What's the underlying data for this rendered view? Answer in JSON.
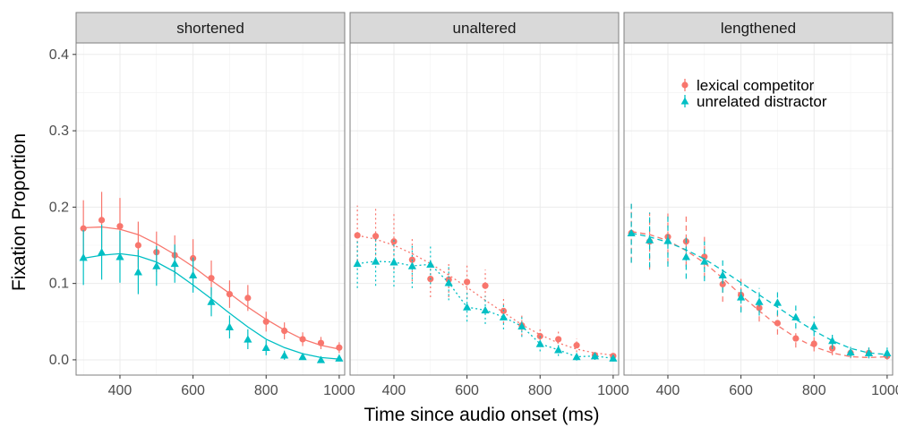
{
  "chart_data": {
    "type": "scatter",
    "xlabel": "Time since audio onset (ms)",
    "ylabel": "Fixation Proportion",
    "xlim": [
      280,
      1015
    ],
    "ylim": [
      -0.02,
      0.415
    ],
    "x_ticks": [
      400,
      600,
      800,
      1000
    ],
    "x_tick_labels": [
      "400",
      "600",
      "800",
      "1000"
    ],
    "y_ticks": [
      0.0,
      0.1,
      0.2,
      0.3,
      0.4
    ],
    "y_tick_labels": [
      "0.0",
      "0.1",
      "0.2",
      "0.3",
      "0.4"
    ],
    "grid": true,
    "legend_position": "top-right of last panel",
    "colors": {
      "lexical competitor": "#F8766D",
      "unrelated distractor": "#00BFC4"
    },
    "x": [
      300,
      350,
      400,
      450,
      500,
      550,
      600,
      650,
      700,
      750,
      800,
      850,
      900,
      950,
      1000
    ],
    "panels": [
      {
        "label": "shortened",
        "line_style": "solid",
        "series": [
          {
            "name": "lexical competitor",
            "marker": "circle",
            "values": [
              0.172,
              0.183,
              0.175,
              0.15,
              0.141,
              0.137,
              0.133,
              0.107,
              0.086,
              0.081,
              0.05,
              0.038,
              0.027,
              0.022,
              0.016
            ],
            "err_low": [
              0.135,
              0.147,
              0.139,
              0.121,
              0.115,
              0.11,
              0.108,
              0.085,
              0.068,
              0.064,
              0.037,
              0.027,
              0.018,
              0.014,
              0.009
            ],
            "err_high": [
              0.209,
              0.22,
              0.212,
              0.181,
              0.168,
              0.163,
              0.158,
              0.13,
              0.104,
              0.098,
              0.063,
              0.049,
              0.036,
              0.03,
              0.023
            ],
            "fit": [
              0.173,
              0.174,
              0.171,
              0.164,
              0.152,
              0.138,
              0.122,
              0.104,
              0.087,
              0.069,
              0.053,
              0.039,
              0.027,
              0.019,
              0.014
            ]
          },
          {
            "name": "unrelated distractor",
            "marker": "triangle",
            "values": [
              0.134,
              0.141,
              0.135,
              0.115,
              0.123,
              0.126,
              0.111,
              0.076,
              0.043,
              0.027,
              0.016,
              0.006,
              0.004,
              0.0,
              0.002
            ],
            "err_low": [
              0.098,
              0.105,
              0.101,
              0.086,
              0.097,
              0.101,
              0.088,
              0.057,
              0.028,
              0.014,
              0.006,
              0.0,
              0.0,
              -0.003,
              -0.002
            ],
            "err_high": [
              0.17,
              0.177,
              0.169,
              0.144,
              0.149,
              0.151,
              0.134,
              0.095,
              0.058,
              0.04,
              0.026,
              0.012,
              0.008,
              0.004,
              0.006
            ],
            "fit": [
              0.133,
              0.137,
              0.139,
              0.136,
              0.128,
              0.115,
              0.098,
              0.08,
              0.061,
              0.043,
              0.027,
              0.016,
              0.008,
              0.003,
              0.001
            ]
          }
        ]
      },
      {
        "label": "unaltered",
        "line_style": "dotted",
        "series": [
          {
            "name": "lexical competitor",
            "marker": "circle",
            "values": [
              0.163,
              0.162,
              0.155,
              0.131,
              0.106,
              0.105,
              0.102,
              0.097,
              0.064,
              0.045,
              0.031,
              0.027,
              0.019,
              0.006,
              0.005
            ],
            "err_low": [
              0.124,
              0.125,
              0.118,
              0.103,
              0.082,
              0.082,
              0.08,
              0.076,
              0.048,
              0.032,
              0.02,
              0.017,
              0.01,
              0.001,
              0.0
            ],
            "err_high": [
              0.202,
              0.2,
              0.192,
              0.159,
              0.13,
              0.128,
              0.124,
              0.118,
              0.08,
              0.058,
              0.042,
              0.037,
              0.028,
              0.011,
              0.01
            ],
            "fit": [
              0.163,
              0.158,
              0.15,
              0.139,
              0.126,
              0.111,
              0.095,
              0.078,
              0.062,
              0.046,
              0.033,
              0.022,
              0.014,
              0.009,
              0.006
            ]
          },
          {
            "name": "unrelated distractor",
            "marker": "triangle",
            "values": [
              0.126,
              0.129,
              0.128,
              0.123,
              0.125,
              0.101,
              0.069,
              0.065,
              0.056,
              0.044,
              0.021,
              0.013,
              0.004,
              0.005,
              0.002
            ],
            "err_low": [
              0.094,
              0.097,
              0.096,
              0.094,
              0.099,
              0.078,
              0.05,
              0.047,
              0.04,
              0.03,
              0.011,
              0.005,
              -0.001,
              0.0,
              -0.002
            ],
            "err_high": [
              0.158,
              0.161,
              0.16,
              0.152,
              0.151,
              0.124,
              0.088,
              0.083,
              0.072,
              0.058,
              0.031,
              0.021,
              0.009,
              0.01,
              0.006
            ]
          }
        ]
      },
      {
        "label": "lengthened",
        "line_style": "dashed",
        "series": [
          {
            "name": "lexical competitor",
            "marker": "circle",
            "values": [
              0.166,
              0.155,
              0.161,
              0.155,
              0.135,
              0.099,
              0.085,
              0.068,
              0.048,
              0.028,
              0.021,
              0.015,
              0.009,
              0.009,
              0.005
            ],
            "err_low": [
              0.128,
              0.118,
              0.126,
              0.122,
              0.107,
              0.076,
              0.064,
              0.05,
              0.033,
              0.016,
              0.011,
              0.006,
              0.002,
              0.002,
              0.0
            ],
            "err_high": [
              0.204,
              0.192,
              0.196,
              0.188,
              0.163,
              0.122,
              0.106,
              0.086,
              0.063,
              0.04,
              0.031,
              0.024,
              0.016,
              0.016,
              0.01
            ],
            "fit": [
              0.168,
              0.164,
              0.156,
              0.143,
              0.127,
              0.107,
              0.085,
              0.064,
              0.045,
              0.029,
              0.017,
              0.009,
              0.004,
              0.003,
              0.004
            ]
          },
          {
            "name": "unrelated distractor",
            "marker": "triangle",
            "values": [
              0.166,
              0.157,
              0.156,
              0.135,
              0.129,
              0.111,
              0.082,
              0.076,
              0.075,
              0.056,
              0.044,
              0.025,
              0.01,
              0.009,
              0.009
            ],
            "err_low": [
              0.127,
              0.121,
              0.122,
              0.106,
              0.103,
              0.088,
              0.062,
              0.058,
              0.058,
              0.041,
              0.031,
              0.014,
              0.003,
              0.002,
              0.002
            ],
            "err_high": [
              0.205,
              0.193,
              0.19,
              0.164,
              0.155,
              0.134,
              0.102,
              0.094,
              0.092,
              0.071,
              0.057,
              0.036,
              0.017,
              0.016,
              0.016
            ],
            "fit": [
              0.166,
              0.161,
              0.154,
              0.144,
              0.132,
              0.117,
              0.101,
              0.085,
              0.069,
              0.053,
              0.038,
              0.025,
              0.015,
              0.009,
              0.007
            ]
          }
        ]
      }
    ]
  }
}
